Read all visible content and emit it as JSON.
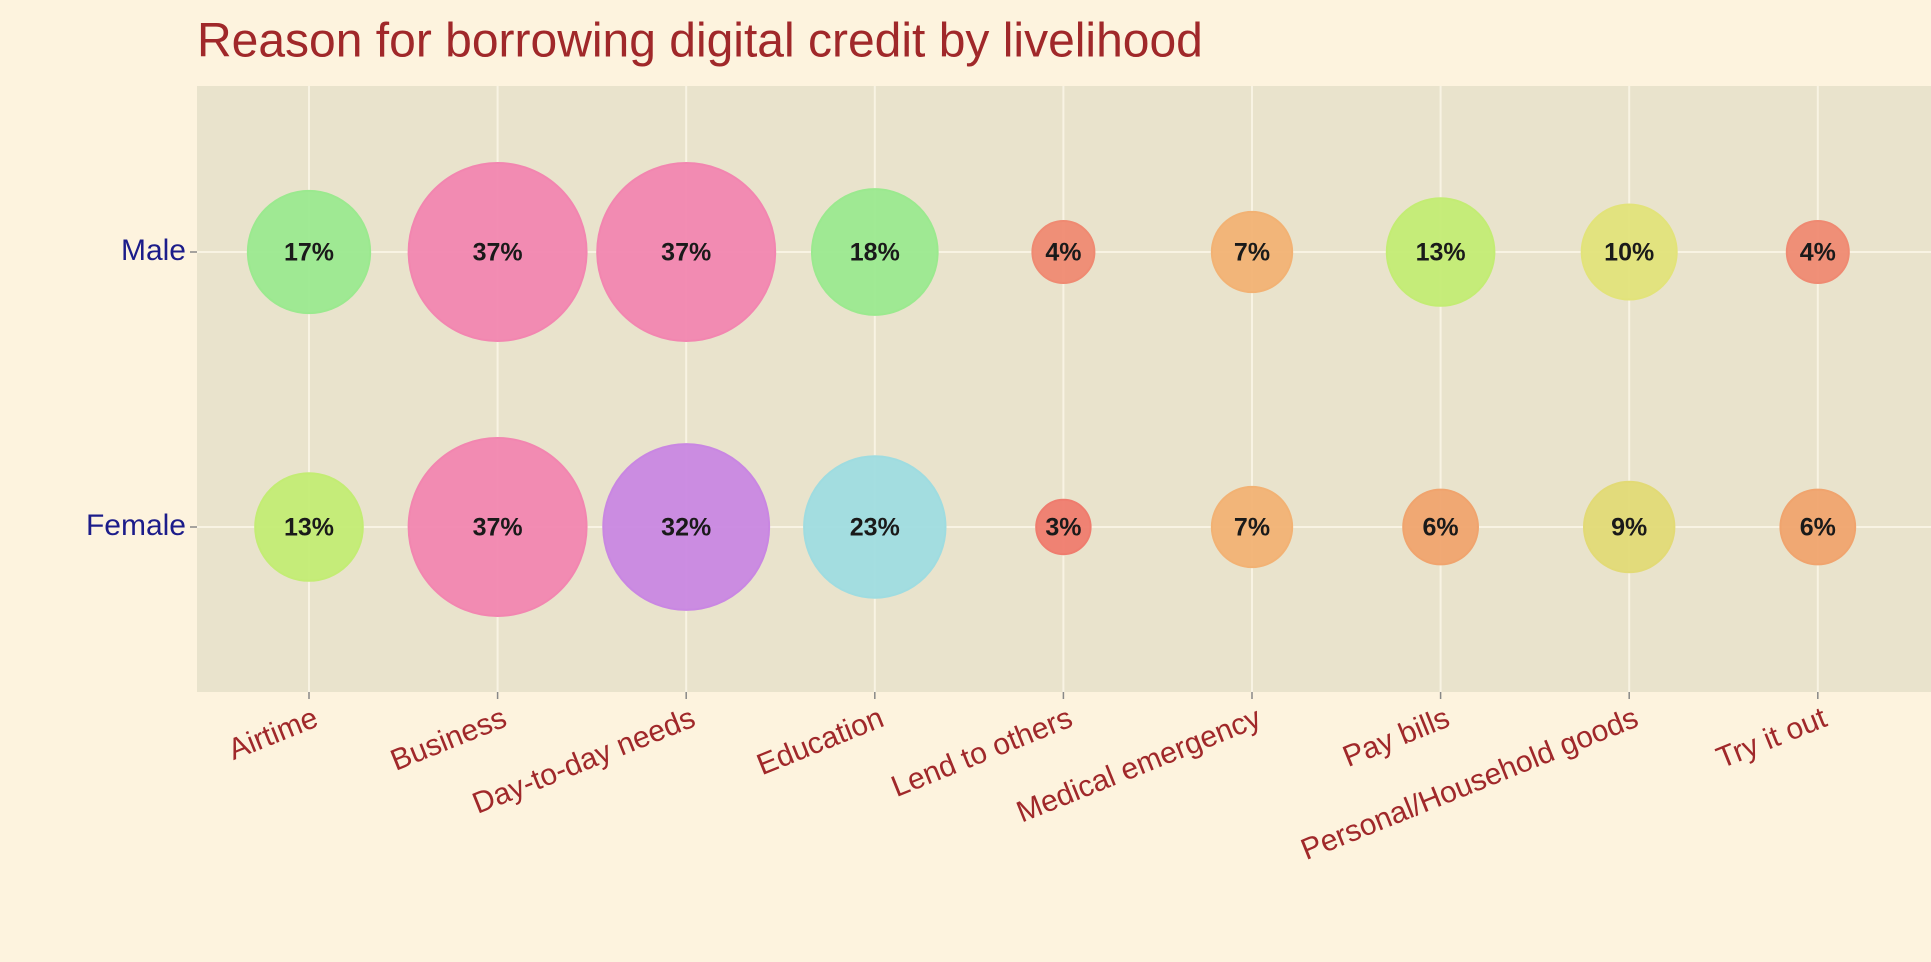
{
  "chart_data": {
    "type": "bubble",
    "title": "Reason for borrowing digital credit by livelihood",
    "categories": [
      "Airtime",
      "Business",
      "Day-to-day needs",
      "Education",
      "Lend to others",
      "Medical emergency",
      "Pay bills",
      "Personal/Household goods",
      "Try it out"
    ],
    "series": [
      {
        "name": "Male",
        "values": [
          17,
          37,
          37,
          18,
          4,
          7,
          13,
          10,
          4
        ],
        "value_labels": [
          "17%",
          "37%",
          "37%",
          "18%",
          "4%",
          "7%",
          "13%",
          "10%",
          "4%"
        ],
        "colors": [
          "#9be98f",
          "#f286b0",
          "#f286b0",
          "#9be98f",
          "#ef8a72",
          "#f2b274",
          "#c3ec74",
          "#e2e37a",
          "#ef8a72"
        ]
      },
      {
        "name": "Female",
        "values": [
          13,
          37,
          32,
          23,
          3,
          7,
          6,
          9,
          6
        ],
        "value_labels": [
          "13%",
          "37%",
          "32%",
          "23%",
          "3%",
          "7%",
          "6%",
          "9%",
          "6%"
        ],
        "colors": [
          "#c3ec74",
          "#f286b0",
          "#c987e2",
          "#9fdce0",
          "#ef7c6e",
          "#f2b274",
          "#f0a46e",
          "#e2da76",
          "#f0a46e"
        ]
      }
    ],
    "grid": true
  }
}
